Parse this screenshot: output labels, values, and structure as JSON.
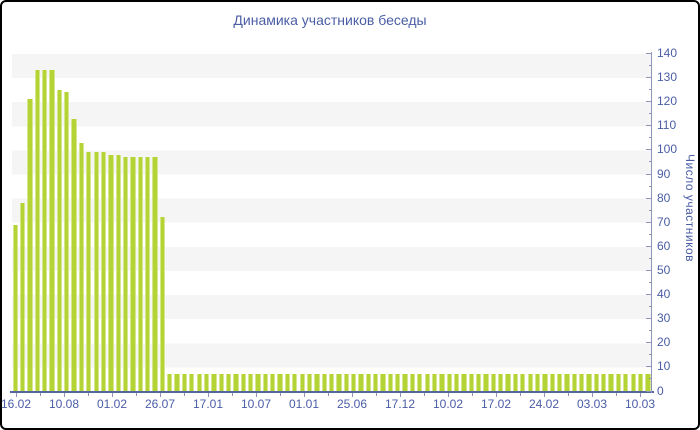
{
  "title": "Динамика участников беседы",
  "chart_data": {
    "type": "bar",
    "title": "Динамика участников беседы",
    "xlabel": "",
    "ylabel": "Число участников",
    "ylim": [
      0,
      140
    ],
    "y_major_tick_step": 10,
    "y_minor_tick_step": 5,
    "y_ticks": [
      0,
      10,
      20,
      30,
      40,
      50,
      60,
      70,
      80,
      90,
      100,
      110,
      120,
      130,
      140
    ],
    "legend": "none",
    "grid": "alternating horizontal bands",
    "bar_color": "#b3d434",
    "band_color": "#f5f5f5",
    "accent_text_color": "#4a5da6",
    "axis_line_color": "#55669c",
    "x_labels": [
      "16.02",
      "10.08",
      "01.02",
      "26.07",
      "17.01",
      "10.07",
      "01.01",
      "25.06",
      "17.12",
      "10.02",
      "17.02",
      "24.02",
      "03.03",
      "10.03"
    ],
    "values": [
      69,
      78,
      121,
      133,
      133,
      133,
      125,
      124,
      113,
      103,
      99,
      99,
      99,
      98,
      98,
      97,
      97,
      97,
      97,
      97,
      72,
      7,
      7,
      7,
      7,
      7,
      7,
      7,
      7,
      7,
      7,
      7,
      7,
      7,
      7,
      7,
      7,
      7,
      7,
      7,
      7,
      7,
      7,
      7,
      7,
      7,
      7,
      7,
      7,
      7,
      7,
      7,
      7,
      7,
      7,
      7,
      7,
      7,
      7,
      7,
      7,
      7,
      7,
      7,
      7,
      7,
      7,
      7,
      7,
      7,
      7,
      7,
      7,
      7,
      7,
      7,
      7,
      7,
      7,
      7,
      7,
      7,
      7,
      7,
      7,
      7,
      7
    ]
  }
}
